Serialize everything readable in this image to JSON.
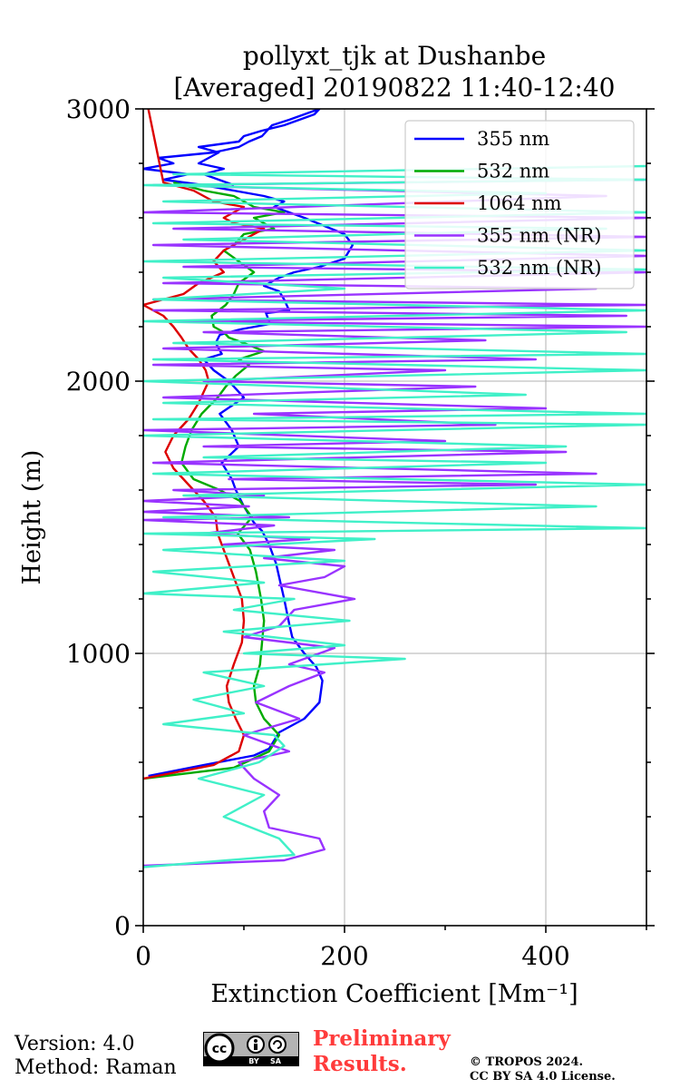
{
  "chart_data": {
    "type": "line",
    "title": "pollyxt_tjk at Dushanbe",
    "subtitle": "[Averaged] 20190822 11:40-12:40",
    "xlabel": "Extinction Coefficient [Mm⁻¹]",
    "ylabel": "Height (m)",
    "xlim": [
      0,
      500
    ],
    "ylim": [
      0,
      3000
    ],
    "xticks": [
      0,
      200,
      400
    ],
    "yticks": [
      0,
      1000,
      2000,
      3000
    ],
    "grid": true,
    "legend": "top-right",
    "series": [
      {
        "name": "355 nm",
        "color": "#0000ff",
        "x": [
          5,
          60,
          110,
          125,
          135,
          160,
          175,
          178,
          172,
          160,
          148,
          145,
          140,
          132,
          125,
          118,
          110,
          100,
          92,
          88,
          78,
          95,
          88,
          76,
          100,
          85,
          70,
          60,
          78,
          72,
          76,
          96,
          126,
          122,
          145,
          140,
          135,
          120,
          135,
          150,
          175,
          200,
          208,
          200,
          180,
          160,
          145,
          130,
          140,
          120,
          60,
          20,
          45,
          0,
          30,
          15,
          70,
          95,
          105,
          118,
          123,
          128,
          145,
          160,
          175,
          170,
          155,
          140,
          118,
          100,
          95,
          55,
          75,
          65,
          55,
          80,
          60,
          75,
          90
        ],
        "y": [
          550,
          590,
          625,
          650,
          710,
          760,
          820,
          900,
          950,
          1000,
          1060,
          1110,
          1200,
          1330,
          1400,
          1450,
          1480,
          1540,
          1600,
          1640,
          1700,
          1760,
          1820,
          1880,
          1940,
          2000,
          2040,
          2080,
          2100,
          2140,
          2170,
          2190,
          2210,
          2250,
          2260,
          2300,
          2330,
          2350,
          2380,
          2400,
          2420,
          2450,
          2500,
          2540,
          2570,
          2600,
          2620,
          2640,
          2660,
          2680,
          2720,
          2740,
          2760,
          2780,
          2800,
          2820,
          2840,
          2860,
          2880,
          2900,
          2920,
          2940,
          2960,
          2980,
          3000,
          2980,
          2960,
          2940,
          2920,
          2900,
          2880,
          2860,
          2840,
          2820,
          2800,
          2780,
          2760,
          2740,
          2720
        ]
      },
      {
        "name": "532 nm",
        "color": "#00aa00",
        "x": [
          0,
          90,
          125,
          135,
          120,
          112,
          110,
          116,
          118,
          120,
          117,
          112,
          106,
          94,
          108,
          96,
          76,
          50,
          38,
          42,
          48,
          58,
          74,
          82,
          92,
          105,
          95,
          120,
          100,
          85,
          80,
          70,
          68,
          82,
          90,
          95,
          110,
          95,
          80,
          90,
          100,
          130,
          110,
          140,
          110,
          90,
          60,
          30
        ],
        "y": [
          540,
          580,
          640,
          700,
          760,
          820,
          880,
          960,
          1040,
          1120,
          1200,
          1300,
          1380,
          1440,
          1500,
          1560,
          1600,
          1640,
          1700,
          1760,
          1820,
          1880,
          1940,
          1980,
          2020,
          2060,
          2080,
          2110,
          2140,
          2160,
          2180,
          2200,
          2240,
          2280,
          2320,
          2360,
          2400,
          2440,
          2480,
          2500,
          2540,
          2560,
          2600,
          2620,
          2640,
          2680,
          2700,
          2730
        ]
      },
      {
        "name": "1064 nm",
        "color": "#dd0000",
        "x": [
          0,
          70,
          95,
          100,
          92,
          85,
          83,
          90,
          98,
          100,
          98,
          88,
          80,
          74,
          72,
          60,
          45,
          30,
          22,
          30,
          45,
          55,
          60,
          65,
          62,
          55,
          45,
          38,
          30,
          20,
          0,
          40,
          55,
          80,
          70,
          80,
          100,
          120,
          90,
          80,
          90,
          100,
          70,
          60,
          50,
          20,
          5
        ],
        "y": [
          540,
          590,
          640,
          700,
          760,
          820,
          880,
          960,
          1040,
          1120,
          1200,
          1300,
          1380,
          1440,
          1500,
          1560,
          1620,
          1680,
          1740,
          1800,
          1860,
          1920,
          1960,
          2000,
          2040,
          2080,
          2120,
          2160,
          2200,
          2240,
          2280,
          2320,
          2360,
          2400,
          2440,
          2480,
          2520,
          2560,
          2580,
          2600,
          2620,
          2640,
          2660,
          2680,
          2700,
          2730,
          3000
        ]
      },
      {
        "name": "355 nm (NR)",
        "color": "#9933ff",
        "x": [
          0,
          140,
          180,
          175,
          125,
          120,
          135,
          110,
          95,
          145,
          100,
          155,
          112,
          145,
          180,
          145,
          190,
          100,
          135,
          150,
          210,
          135,
          180,
          200,
          120,
          190,
          80,
          165,
          60,
          130,
          0,
          145,
          0,
          105,
          0,
          120,
          30,
          390,
          85,
          450,
          10,
          420,
          60,
          300,
          0,
          350,
          110,
          400,
          20,
          330,
          60,
          300,
          10,
          390,
          20,
          340,
          60,
          500,
          20,
          480,
          10,
          500,
          10,
          450,
          20,
          500,
          40,
          500,
          10,
          500,
          30,
          500,
          0,
          460,
          10,
          500
        ],
        "y": [
          220,
          240,
          280,
          320,
          360,
          420,
          480,
          540,
          600,
          640,
          700,
          760,
          820,
          880,
          930,
          960,
          1020,
          1060,
          1100,
          1160,
          1200,
          1250,
          1280,
          1320,
          1350,
          1380,
          1400,
          1420,
          1440,
          1470,
          1490,
          1500,
          1520,
          1540,
          1560,
          1580,
          1600,
          1620,
          1640,
          1660,
          1700,
          1740,
          1760,
          1780,
          1820,
          1840,
          1880,
          1900,
          1940,
          1980,
          2000,
          2040,
          2060,
          2080,
          2120,
          2150,
          2180,
          2200,
          2220,
          2240,
          2260,
          2280,
          2300,
          2340,
          2360,
          2400,
          2420,
          2460,
          2500,
          2530,
          2560,
          2600,
          2620,
          2680,
          2720,
          2740
        ]
      },
      {
        "name": "532 nm (NR)",
        "color": "#40f0c8",
        "x": [
          0,
          150,
          135,
          80,
          120,
          55,
          115,
          140,
          130,
          20,
          100,
          50,
          120,
          60,
          260,
          100,
          200,
          80,
          205,
          90,
          150,
          0,
          120,
          10,
          200,
          20,
          230,
          0,
          500,
          20,
          450,
          40,
          500,
          10,
          400,
          60,
          420,
          0,
          500,
          10,
          500,
          20,
          380,
          0,
          500,
          10,
          500,
          30,
          480,
          0,
          500,
          10,
          200,
          20,
          500,
          0,
          500,
          40,
          460,
          10,
          500,
          20,
          400,
          0,
          500,
          30,
          500
        ],
        "y": [
          215,
          260,
          320,
          400,
          480,
          540,
          600,
          660,
          700,
          740,
          780,
          830,
          880,
          930,
          980,
          1000,
          1030,
          1080,
          1120,
          1160,
          1200,
          1220,
          1260,
          1300,
          1340,
          1380,
          1420,
          1440,
          1460,
          1500,
          1540,
          1580,
          1620,
          1660,
          1700,
          1720,
          1760,
          1800,
          1840,
          1860,
          1880,
          1920,
          1950,
          2000,
          2040,
          2080,
          2100,
          2140,
          2180,
          2220,
          2260,
          2300,
          2340,
          2380,
          2410,
          2440,
          2480,
          2520,
          2560,
          2580,
          2620,
          2660,
          2690,
          2720,
          2740,
          2760,
          2790
        ]
      }
    ]
  },
  "footer": {
    "version": "Version: 4.0",
    "method": "Method: Raman",
    "preliminary_line1": "Preliminary",
    "preliminary_line2": "Results.",
    "copyright_line1": "© TROPOS 2024.",
    "copyright_line2": "CC BY SA 4.0 License.",
    "cc_badge": {
      "cc": "cc",
      "by": "BY",
      "sa": "SA"
    }
  }
}
